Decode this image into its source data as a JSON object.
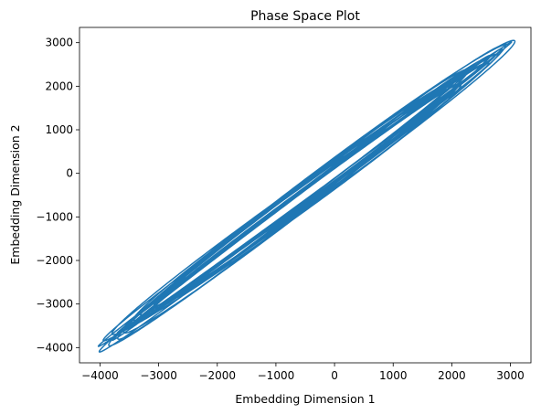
{
  "chart_data": {
    "type": "line",
    "title": "Phase Space Plot",
    "xlabel": "Embedding Dimension 1",
    "ylabel": "Embedding Dimension 2",
    "xlim": [
      -4350,
      3350
    ],
    "ylim": [
      -4350,
      3350
    ],
    "xticks": [
      -4000,
      -3000,
      -2000,
      -1000,
      0,
      1000,
      2000,
      3000
    ],
    "yticks": [
      -4000,
      -3000,
      -2000,
      -1000,
      0,
      1000,
      2000,
      3000
    ],
    "grid": false,
    "series": [
      {
        "color": "#1f77b4",
        "description_points": {
          "max_point": [
            3000,
            3000
          ],
          "min_point": [
            -4000,
            -4000
          ],
          "inner_loop_upper": [
            2650,
            2650
          ],
          "inner_loop_lower": [
            -3700,
            -3700
          ]
        }
      }
    ]
  }
}
